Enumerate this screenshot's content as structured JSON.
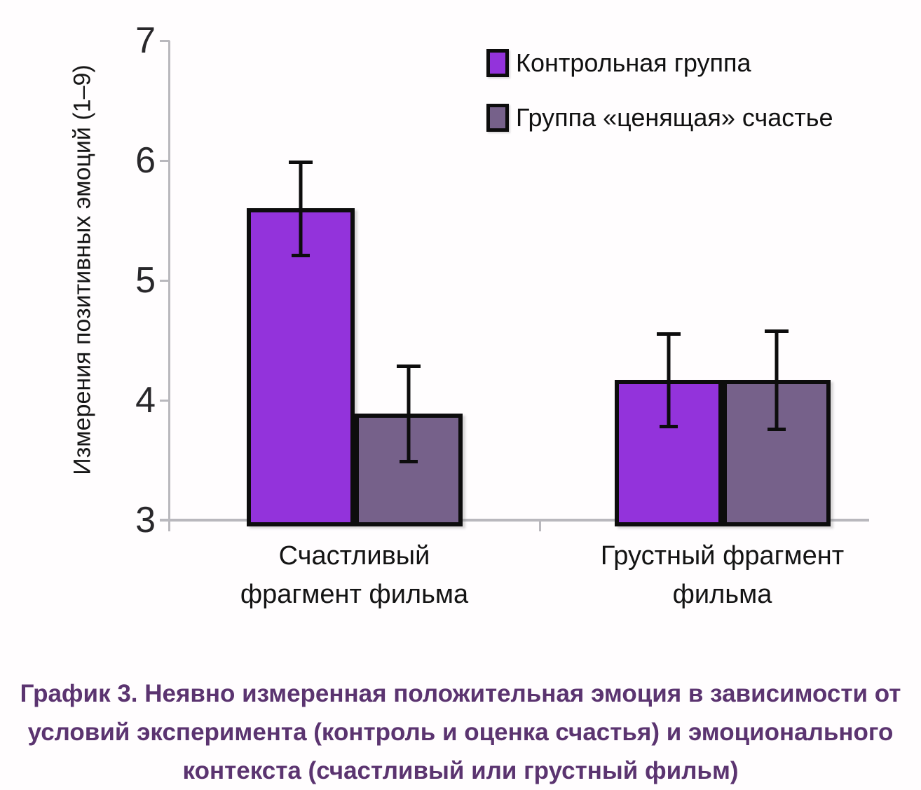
{
  "chart_data": {
    "type": "bar",
    "title": "",
    "ylabel": "Измерения позитивных эмоций (1–9)",
    "xlabel": "",
    "ylim": [
      3,
      7
    ],
    "yticks": [
      3,
      4,
      5,
      6,
      7
    ],
    "grid": false,
    "legend_position": "top-right-inside",
    "error_bars": true,
    "categories": [
      "Счастливый фрагмент фильма",
      "Грустный фрагмент фильма"
    ],
    "category_lines": [
      [
        "Счастливый",
        "фрагмент фильма"
      ],
      [
        "Грустный фрагмент",
        "фильма"
      ]
    ],
    "series": [
      {
        "name": "Контрольная группа",
        "color": "#9333db",
        "values": [
          5.6,
          4.17
        ],
        "errors": [
          0.4,
          0.4
        ]
      },
      {
        "name": "Группа «ценящая» счастье",
        "color": "#76618a",
        "values": [
          3.89,
          4.17
        ],
        "errors": [
          0.41,
          0.42
        ]
      }
    ]
  },
  "caption": {
    "lines": [
      "График 3. Неявно измеренная положительная эмоция в зависимости от",
      "условий эксперимента (контроль и оценка счастья) и эмоционального",
      "контекста (счастливый или грустный фильм)"
    ],
    "color": "#5b3470"
  },
  "colors": {
    "background": "#fffdfe",
    "axis": "#b9b8bd",
    "bar_border": "#0d0d0d",
    "error_bar": "#0d0d0d",
    "tick_label": "#29282b"
  }
}
